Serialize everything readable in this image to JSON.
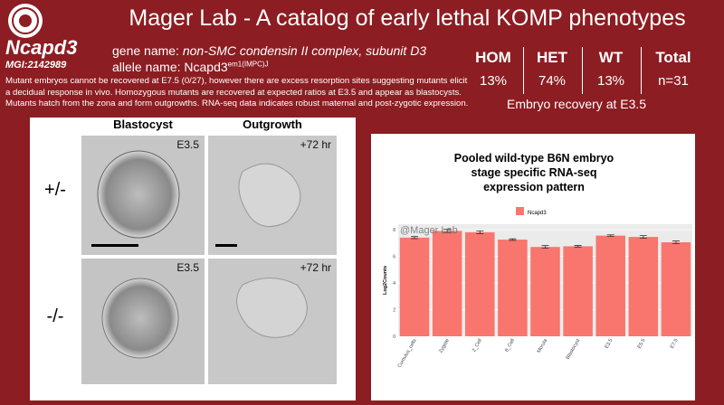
{
  "header": {
    "title": "Mager Lab - A catalog of early lethal KOMP phenotypes"
  },
  "gene": {
    "symbol": "Ncapd3",
    "mgi": "MGI:2142989",
    "gene_name_label": "gene name:",
    "gene_name": "non-SMC condensin II complex, subunit D3",
    "allele_label": "allele name:",
    "allele": "Ncapd3",
    "allele_sup": "em1(IMPC)J"
  },
  "description": "Mutant embryos cannot be recovered at E7.5 (0/27), however there are excess resorption sites suggesting mutants elicit a decidual response in vivo. Homozygous mutants are recovered at expected ratios at E3.5 and appear as blastocysts. Mutants hatch from the zona and form outgrowths. RNA-seq data indicates robust maternal and post-zygotic expression.",
  "table": {
    "headers": [
      "HOM",
      "HET",
      "WT",
      "Total"
    ],
    "values": [
      "13%",
      "74%",
      "13%",
      "n=31"
    ],
    "caption": "Embryo recovery at E3.5"
  },
  "images": {
    "columns": [
      "Blastocyst",
      "Outgrowth"
    ],
    "rows": [
      "+/-",
      "-/-"
    ],
    "stages": [
      [
        "E3.5",
        "+72 hr"
      ],
      [
        "E3.5",
        "+72 hr"
      ]
    ]
  },
  "chart": {
    "type": "bar",
    "title": [
      "Pooled wild-type B6N embryo",
      "stage specific RNA-seq",
      "expression pattern"
    ],
    "watermark": "@Mager Lab",
    "ylabel": "Log2Counts",
    "categories": [
      "Cumulus_cells",
      "Zygote",
      "2_Cell",
      "8_Cell",
      "Morula",
      "Blastocyst",
      "E3.5",
      "E5.5",
      "E7.5"
    ],
    "series": [
      {
        "name": "Ncapd3",
        "color": "#f8766d",
        "values": [
          7.4,
          7.9,
          7.8,
          7.25,
          6.7,
          6.75,
          7.55,
          7.45,
          7.05
        ],
        "errors": [
          0.08,
          0.12,
          0.1,
          0.06,
          0.1,
          0.06,
          0.06,
          0.1,
          0.1
        ]
      }
    ],
    "ylim": [
      0,
      8
    ],
    "yticks": [
      0,
      2,
      4,
      6,
      8
    ],
    "grid": true
  }
}
